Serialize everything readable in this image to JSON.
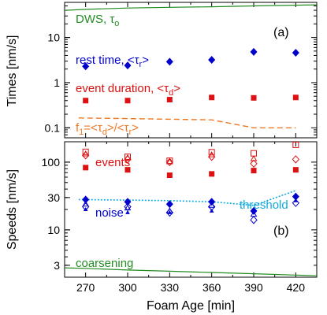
{
  "chart_data": [
    {
      "panel": "(a)",
      "type": "scatter",
      "ylabel": "Times [nm/s]",
      "yscale": "log",
      "ylim": [
        0.06,
        60
      ],
      "xlim": [
        255,
        435
      ],
      "y_ticks": [
        {
          "value": 0.1,
          "label": "0.1"
        },
        {
          "value": 1,
          "label": "1"
        },
        {
          "value": 10,
          "label": "10"
        }
      ],
      "annotations": {
        "dws": {
          "main": "DWS, τ",
          "sub": "o",
          "color": "#228B22"
        },
        "rest": {
          "main": "rest time, <τ",
          "sub": "r",
          "close": ">",
          "color": "#0000CC"
        },
        "event": {
          "main": "event duration, <τ",
          "sub": "d",
          "close": ">",
          "color": "#DD1111"
        },
        "frac": {
          "f": "f",
          "f_sub": "1",
          "eq": "=<τ",
          "d_sub": "d",
          "mid": ">/<τ",
          "r_sub": "r",
          "close": ">",
          "color": "#EE7722"
        }
      },
      "series": [
        {
          "name": "DWS, τo",
          "kind": "line",
          "color": "#228B22",
          "x": [
            255,
            270,
            300,
            330,
            360,
            390,
            420,
            435
          ],
          "y": [
            40,
            42,
            45,
            46.5,
            48,
            50,
            52,
            53
          ]
        },
        {
          "name": "rest time, <τr>",
          "kind": "diamond",
          "color": "#0000CC",
          "x": [
            270,
            300,
            330,
            360,
            390,
            420
          ],
          "y": [
            2.3,
            2.4,
            2.9,
            3.2,
            4.8,
            4.6
          ]
        },
        {
          "name": "event duration, <τd>",
          "kind": "square",
          "color": "#DD1111",
          "x": [
            270,
            300,
            330,
            360,
            390,
            420
          ],
          "y": [
            0.4,
            0.4,
            0.42,
            0.47,
            0.46,
            0.47
          ]
        },
        {
          "name": "f1=<τd>/<τr>",
          "kind": "dashed",
          "color": "#EE7722",
          "x": [
            265,
            300,
            330,
            360,
            390,
            420
          ],
          "y": [
            0.165,
            0.16,
            0.155,
            0.15,
            0.1,
            0.1
          ]
        }
      ]
    },
    {
      "panel": "(b)",
      "type": "scatter",
      "ylabel": "Speeds [nm/s]",
      "xlabel": "Foam Age [min]",
      "yscale": "log",
      "ylim": [
        2,
        200
      ],
      "xlim": [
        255,
        435
      ],
      "x_ticks": [
        270,
        300,
        330,
        360,
        390,
        420
      ],
      "y_ticks": [
        {
          "value": 3,
          "label": "3"
        },
        {
          "value": 10,
          "label": "10"
        },
        {
          "value": 30,
          "label": "30"
        },
        {
          "value": 100,
          "label": "100"
        }
      ],
      "annotations": {
        "events": {
          "text": "events",
          "color": "#DD1111"
        },
        "threshold": {
          "text": "threshold",
          "color": "#11AADD"
        },
        "noise": {
          "text": "noise",
          "color": "#0000CC"
        },
        "coarsening": {
          "text": "coarsening",
          "color": "#228B22"
        }
      },
      "series": [
        {
          "name": "coarsening",
          "kind": "line",
          "color": "#228B22",
          "x": [
            255,
            270,
            300,
            330,
            360,
            390,
            420,
            435
          ],
          "y": [
            2.75,
            2.7,
            2.55,
            2.45,
            2.35,
            2.25,
            2.15,
            2.1
          ]
        },
        {
          "name": "threshold",
          "kind": "dotted",
          "color": "#11AADD",
          "x": [
            265,
            300,
            330,
            360,
            390,
            420
          ],
          "y": [
            28,
            27.5,
            27,
            26,
            23,
            38
          ]
        },
        {
          "name": "events",
          "kind": "square",
          "color": "#DD1111",
          "x": [
            270,
            300,
            330,
            360,
            390,
            420
          ],
          "y": [
            83,
            77,
            64,
            67,
            75,
            77
          ]
        },
        {
          "name": "events (open squares)",
          "kind": "open-square",
          "color": "#DD1111",
          "x": [
            270,
            300,
            330,
            360,
            390,
            420
          ],
          "y": [
            142,
            120,
            105,
            140,
            135,
            180
          ]
        },
        {
          "name": "events (open triangles)",
          "kind": "open-triangle",
          "color": "#DD1111",
          "x": [
            270,
            300,
            330,
            360,
            390
          ],
          "y": [
            132,
            116,
            101,
            128,
            112
          ]
        },
        {
          "name": "events (open diamonds)",
          "kind": "open-diamond",
          "color": "#DD1111",
          "x": [
            270,
            300,
            330,
            360,
            390,
            420
          ],
          "y": [
            126,
            110,
            100,
            120,
            95,
            110
          ]
        },
        {
          "name": "noise",
          "kind": "diamond",
          "color": "#0000CC",
          "x": [
            270,
            300,
            330,
            360,
            390,
            420
          ],
          "y": [
            28,
            26,
            24,
            26,
            19,
            31
          ]
        },
        {
          "name": "noise (open diamonds)",
          "kind": "open-diamond",
          "color": "#0000CC",
          "x": [
            270,
            300,
            330,
            360,
            390,
            420
          ],
          "y": [
            22,
            22,
            18,
            22,
            14,
            25
          ]
        },
        {
          "name": "noise (open triangles)",
          "kind": "open-triangle",
          "color": "#0000CC",
          "x": [
            270,
            300,
            330,
            360,
            390
          ],
          "y": [
            24,
            21,
            19,
            23,
            17
          ]
        },
        {
          "name": "noise (small triangles)",
          "kind": "triangle",
          "color": "#0000CC",
          "x": [
            270,
            300,
            330,
            360,
            390,
            420
          ],
          "y": [
            20,
            18,
            18,
            19,
            19,
            27
          ]
        }
      ]
    }
  ]
}
